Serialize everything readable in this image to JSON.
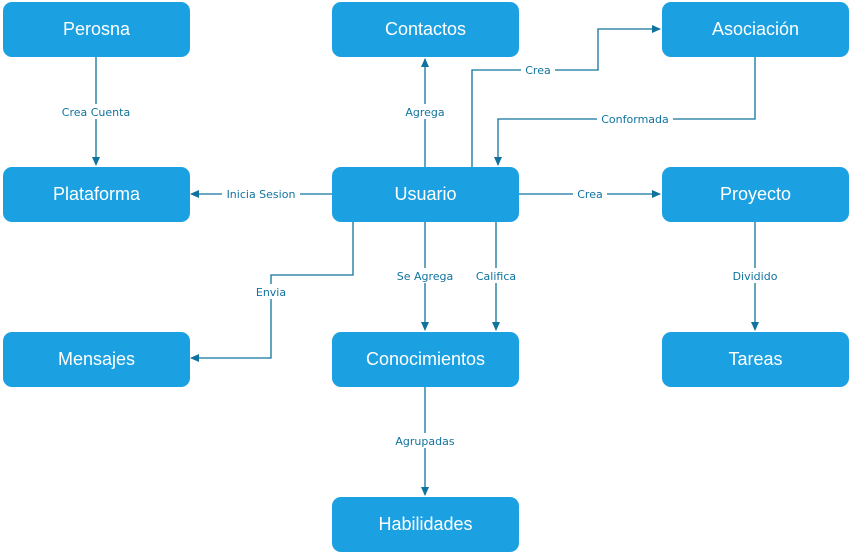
{
  "colors": {
    "node_fill": "#1ba1e2",
    "node_text": "#ffffff",
    "edge": "#10739e"
  },
  "nodes": {
    "perosna": "Perosna",
    "contactos": "Contactos",
    "asociacion": "Asociación",
    "plataforma": "Plataforma",
    "usuario": "Usuario",
    "proyecto": "Proyecto",
    "mensajes": "Mensajes",
    "conocimientos": "Conocimientos",
    "tareas": "Tareas",
    "habilidades": "Habilidades"
  },
  "edges": {
    "crea_cuenta": "Crea Cuenta",
    "agrega": "Agrega",
    "crea_asociacion": "Crea",
    "conformada": "Conformada",
    "inicia_sesion": "Inicia Sesion",
    "crea_proyecto": "Crea",
    "envia": "Envia",
    "se_agrega": "Se Agrega",
    "califica": "Califica",
    "dividido": "Dividido",
    "agrupadas": "Agrupadas"
  }
}
